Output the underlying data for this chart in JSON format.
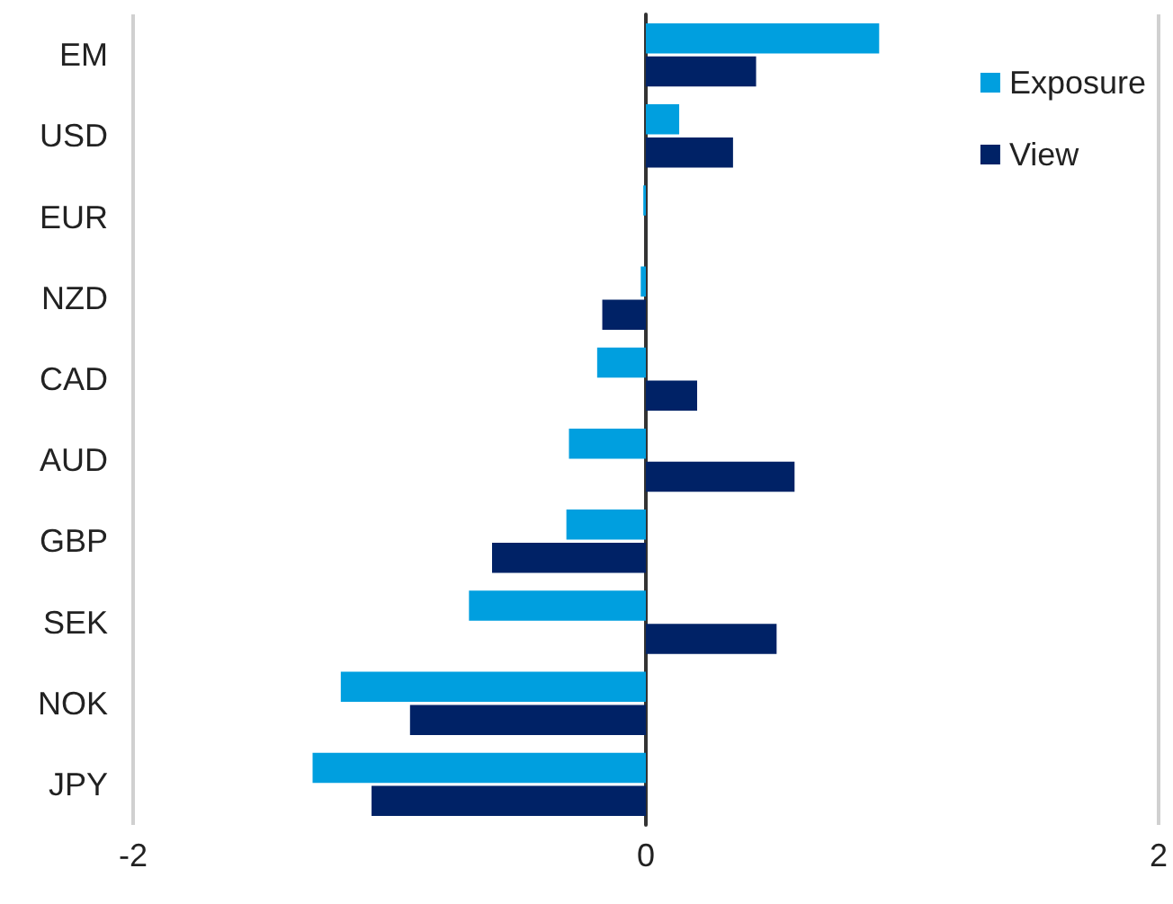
{
  "chart_data": {
    "type": "bar",
    "orientation": "horizontal",
    "categories": [
      "EM",
      "USD",
      "EUR",
      "NZD",
      "CAD",
      "AUD",
      "GBP",
      "SEK",
      "NOK",
      "JPY"
    ],
    "series": [
      {
        "name": "Exposure",
        "color": "#009fdf",
        "values": [
          0.91,
          0.13,
          -0.01,
          -0.02,
          -0.19,
          -0.3,
          -0.31,
          -0.69,
          -1.19,
          -1.3
        ]
      },
      {
        "name": "View",
        "color": "#002266",
        "values": [
          0.43,
          0.34,
          0,
          -0.17,
          0.2,
          0.58,
          -0.6,
          0.51,
          -0.92,
          -1.07
        ]
      }
    ],
    "xlim": [
      -2,
      2
    ],
    "xticks": [
      -2,
      0,
      2
    ],
    "grid": "x",
    "legend": "top right"
  }
}
